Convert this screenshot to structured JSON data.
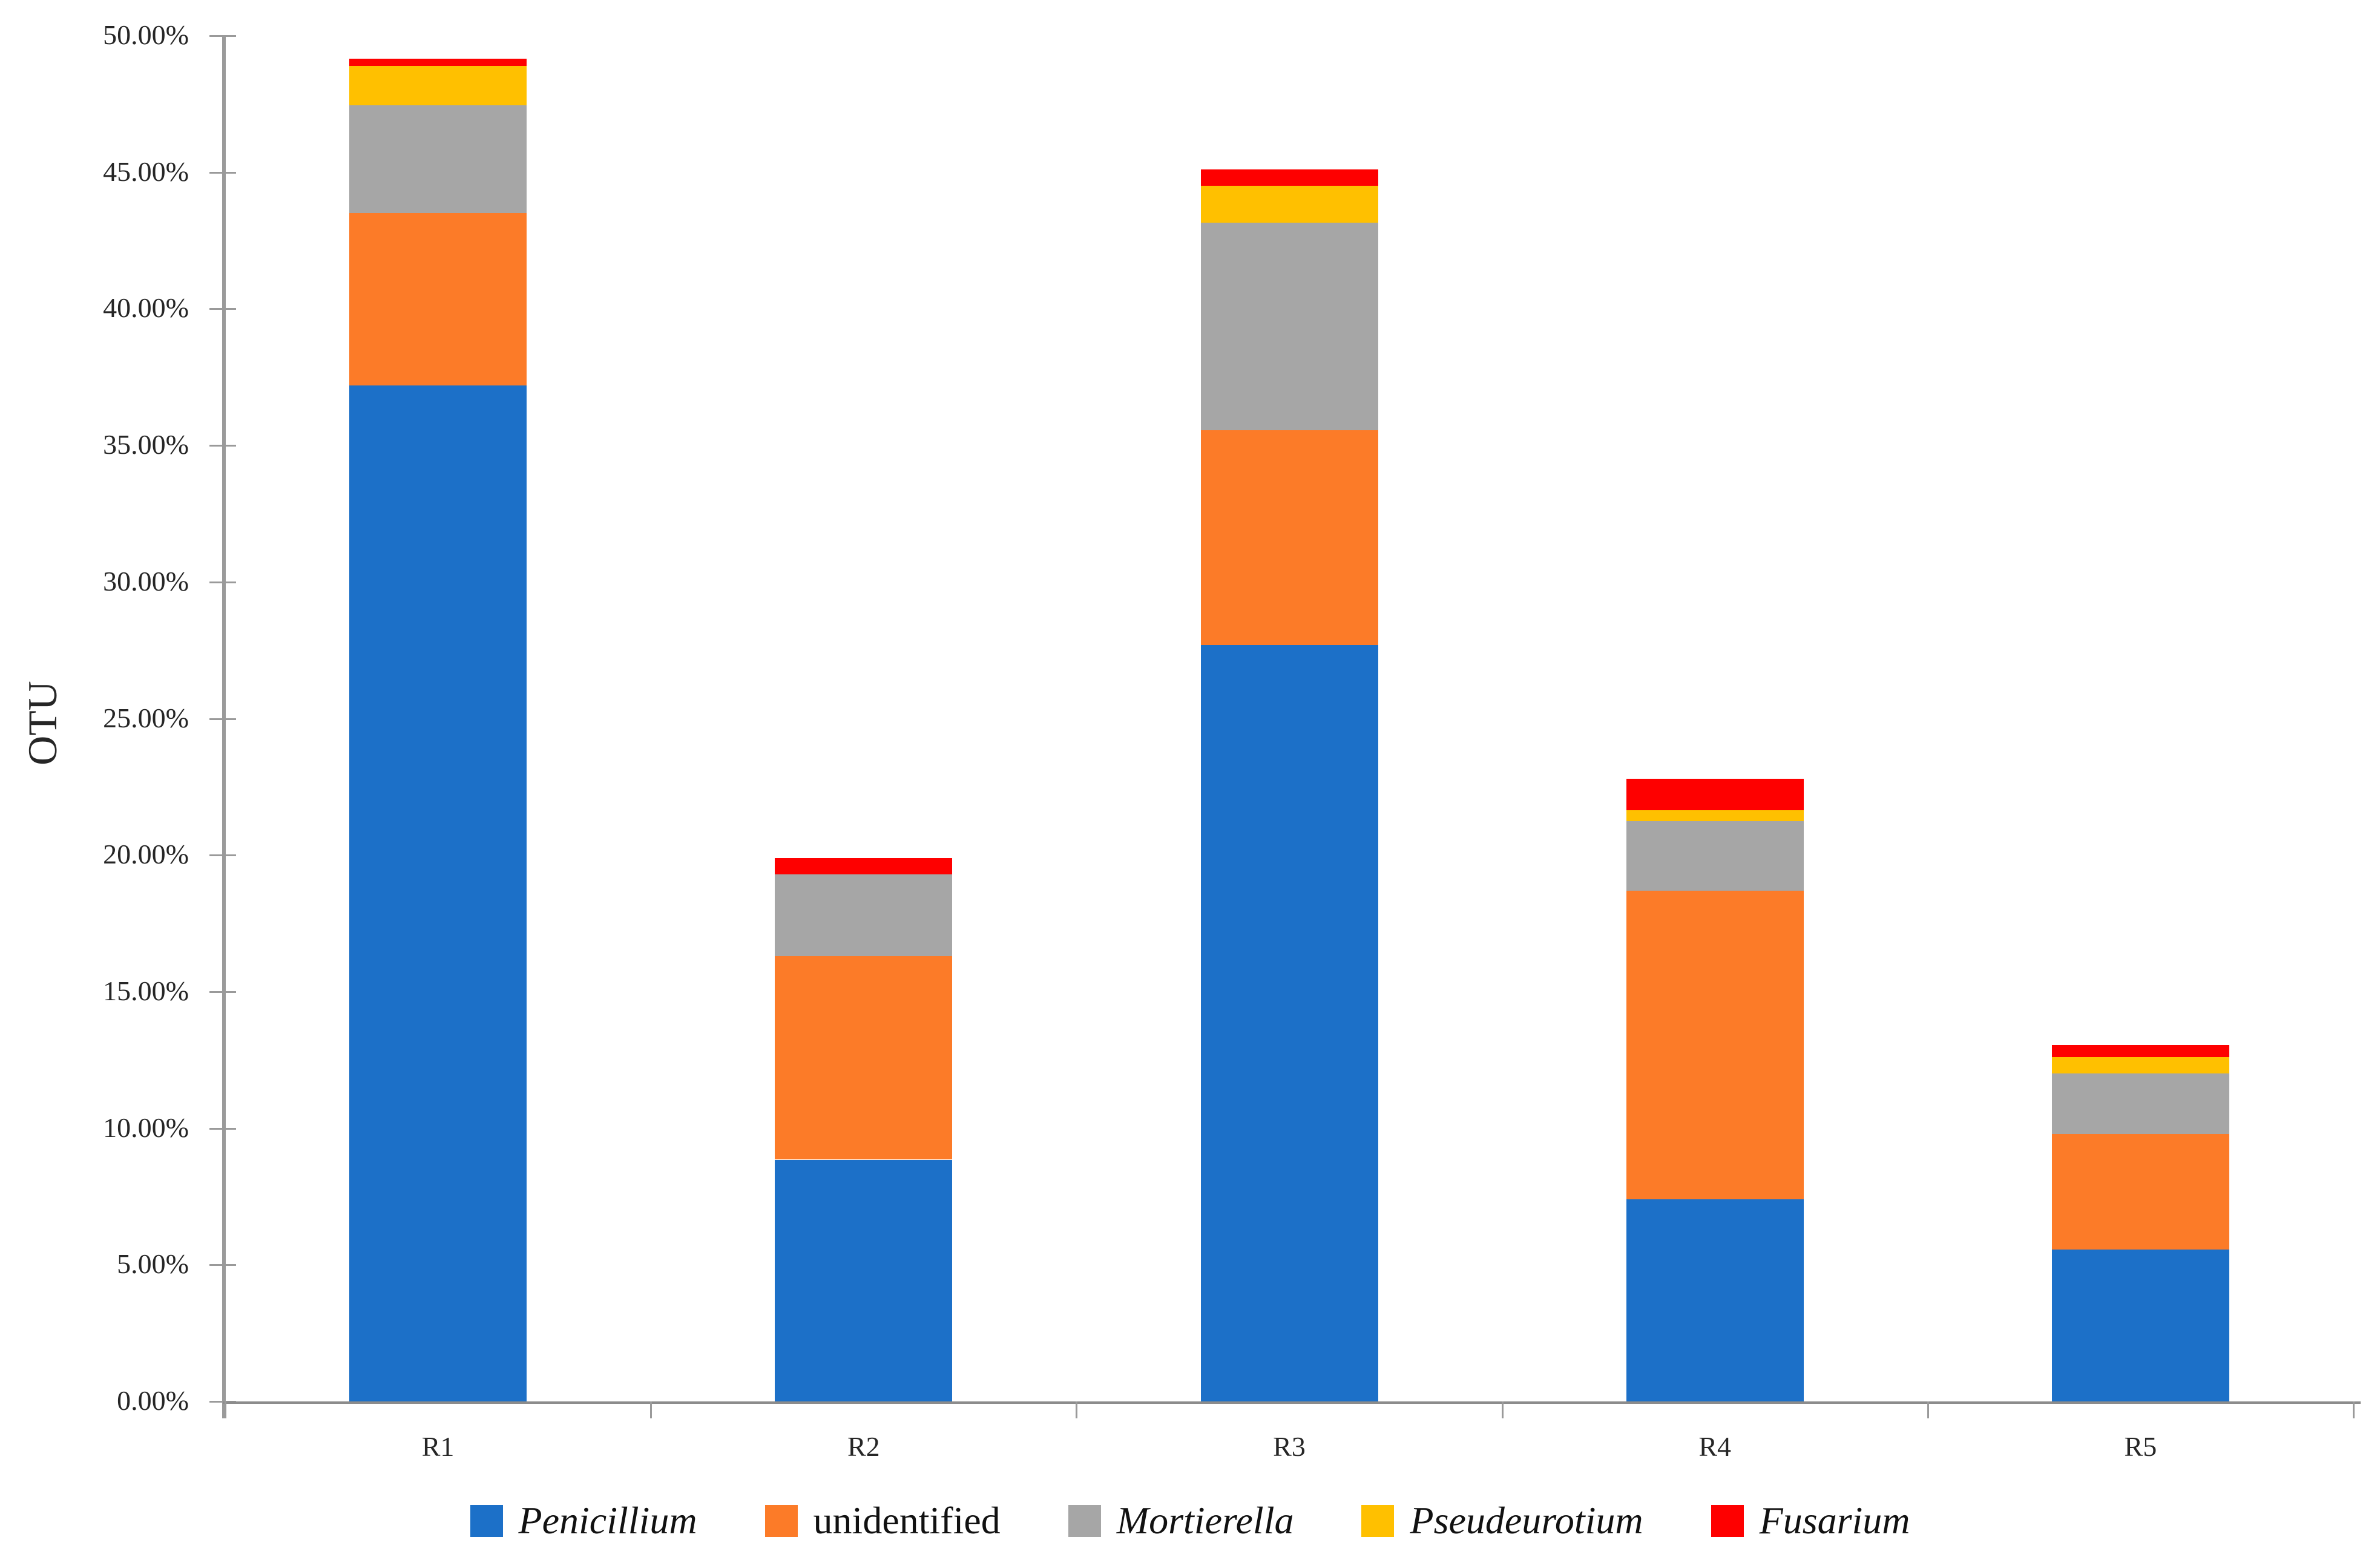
{
  "chart_data": {
    "type": "bar",
    "stacked": true,
    "categories": [
      "R1",
      "R2",
      "R3",
      "R4",
      "R5"
    ],
    "series": [
      {
        "name": "Penicillium",
        "italic": true,
        "color": "#1C70C8",
        "values": [
          37.2,
          8.85,
          27.7,
          7.4,
          5.55
        ]
      },
      {
        "name": "unidentified",
        "italic": false,
        "color": "#FC7B28",
        "values": [
          6.3,
          7.45,
          7.85,
          11.3,
          4.25
        ]
      },
      {
        "name": "Mortierella",
        "italic": true,
        "color": "#A6A6A6",
        "values": [
          3.95,
          3.0,
          7.6,
          2.55,
          2.2
        ]
      },
      {
        "name": "Pseudeurotium",
        "italic": true,
        "color": "#FFC000",
        "values": [
          1.45,
          0.0,
          1.35,
          0.4,
          0.6
        ]
      },
      {
        "name": "Fusarium",
        "italic": true,
        "color": "#FE0000",
        "values": [
          0.25,
          0.6,
          0.6,
          1.15,
          0.45
        ]
      }
    ],
    "stack_totals": [
      49.15,
      19.9,
      45.1,
      22.8,
      13.05
    ],
    "ylabel": "OTU",
    "ylim": [
      0,
      50
    ],
    "ytick_step": 5,
    "ytick_labels": [
      "0.00%",
      "5.00%",
      "10.00%",
      "15.00%",
      "20.00%",
      "25.00%",
      "30.00%",
      "35.00%",
      "40.00%",
      "45.00%",
      "50.00%"
    ],
    "legend_position": "bottom",
    "grid": false,
    "axis_color": "#8c8c8c",
    "tick_color": "#9a9a9a",
    "text_color": "#262626",
    "background_color": "#ffffff"
  }
}
